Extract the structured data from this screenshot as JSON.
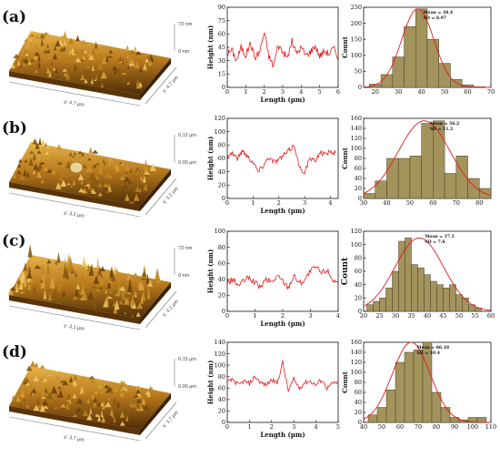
{
  "panels": [
    {
      "label": "(a)",
      "afm": {
        "z_top": "73 nm",
        "z_bottom": "0 nm",
        "axis_y": "y: 4.7 µm",
        "axis_x": "x: 4.7 µm"
      },
      "profile": {
        "xlabel": "Length (µm)",
        "ylabel": "Height (nm)",
        "xlim": [
          0,
          6
        ],
        "ylim": [
          0,
          90
        ],
        "xticks": [
          0,
          1,
          2,
          3,
          4,
          5,
          6
        ],
        "yticks": [
          0,
          15,
          30,
          45,
          60,
          75,
          90
        ]
      },
      "hist": {
        "xlabel": "",
        "ylabel": "Count",
        "ylabel_size": "small",
        "mean_text": "Mean = 38.4",
        "sd_text": "SD = 6.97",
        "xlim": [
          15,
          70
        ],
        "ylim": [
          0,
          250
        ],
        "xticks": [
          20,
          30,
          40,
          50,
          60,
          70
        ],
        "yticks": [
          0,
          50,
          100,
          150,
          200,
          250
        ]
      }
    },
    {
      "label": "(b)",
      "afm": {
        "z_top": "0.12 µm",
        "z_bottom": "0.00 µm",
        "axis_y": "y: 3.2 µm",
        "axis_x": "x: 3.2 µm"
      },
      "profile": {
        "xlabel": "Length (µm)",
        "ylabel": "Height (nm)",
        "xlim": [
          0,
          4.3
        ],
        "ylim": [
          0,
          120
        ],
        "xticks": [
          0,
          1,
          2,
          3,
          4
        ],
        "yticks": [
          0,
          20,
          40,
          60,
          80,
          100,
          120
        ]
      },
      "hist": {
        "xlabel": "",
        "ylabel": "Count",
        "ylabel_size": "small",
        "mean_text": "Mean = 56.2",
        "sd_text": "SD = 11.2",
        "xlim": [
          30,
          85
        ],
        "ylim": [
          0,
          160
        ],
        "xticks": [
          30,
          40,
          50,
          60,
          70,
          80
        ],
        "yticks": [
          0,
          20,
          40,
          60,
          80,
          100,
          120,
          140,
          160
        ]
      }
    },
    {
      "label": "(c)",
      "afm": {
        "z_top": "73 nm",
        "z_bottom": "0 nm",
        "axis_y": "y: 3.1 µm",
        "axis_x": "x: 3.1 µm"
      },
      "profile": {
        "xlabel": "Length (µm)",
        "ylabel": "Height (nm)",
        "xlim": [
          0,
          4
        ],
        "ylim": [
          0,
          100
        ],
        "xticks": [
          0,
          1,
          2,
          3,
          4
        ],
        "yticks": [
          0,
          20,
          40,
          60,
          80,
          100
        ]
      },
      "hist": {
        "xlabel": "",
        "ylabel": "Count",
        "ylabel_size": "big",
        "mean_text": "Mean = 37.5",
        "sd_text": "SD = 7.6",
        "xlim": [
          20,
          60
        ],
        "ylim": [
          0,
          120
        ],
        "xticks": [
          20,
          25,
          30,
          35,
          40,
          45,
          50,
          55,
          60
        ],
        "yticks": [
          0,
          20,
          40,
          60,
          80,
          100,
          120
        ]
      }
    },
    {
      "label": "(d)",
      "afm": {
        "z_top": "0.15 µm",
        "z_bottom": "0.00 µm",
        "axis_y": "y: 3.7 µm",
        "axis_x": "x: 3.7 µm"
      },
      "profile": {
        "xlabel": "Length (µm)",
        "ylabel": "Height (nm)",
        "xlim": [
          0,
          5
        ],
        "ylim": [
          0,
          140
        ],
        "xticks": [
          0,
          1,
          2,
          3,
          4,
          5
        ],
        "yticks": [
          0,
          20,
          40,
          60,
          80,
          100,
          120,
          140
        ]
      },
      "hist": {
        "xlabel": "",
        "ylabel": "Count",
        "ylabel_size": "small",
        "mean_text": "Mean = 66.18",
        "sd_text": "SD = 10.4",
        "xlim": [
          40,
          110
        ],
        "ylim": [
          0,
          160
        ],
        "xticks": [
          40,
          50,
          60,
          70,
          80,
          90,
          100,
          110
        ],
        "yticks": [
          0,
          20,
          40,
          60,
          80,
          100,
          120,
          140,
          160
        ]
      }
    }
  ],
  "colors": {
    "profile_line": "#e41a1c",
    "hist_bar": "#a3935c",
    "hist_edge": "#4a4228",
    "fit_curve": "#e41a1c",
    "afm_dark": "#5a3408",
    "afm_light": "#d8a33a"
  },
  "chart_data": [
    {
      "type": "line",
      "panel": "a",
      "x": [
        0,
        0.25,
        0.5,
        0.75,
        1,
        1.25,
        1.5,
        1.75,
        2,
        2.25,
        2.5,
        2.75,
        3,
        3.25,
        3.5,
        3.75,
        4,
        4.25,
        4.5,
        4.75,
        5,
        5.25,
        5.5,
        5.75,
        6
      ],
      "y": [
        38,
        42,
        30,
        45,
        36,
        50,
        33,
        40,
        62,
        35,
        24,
        48,
        40,
        33,
        52,
        38,
        45,
        36,
        40,
        47,
        35,
        41,
        38,
        44,
        35
      ],
      "xlabel": "Length (µm)",
      "ylabel": "Height (nm)",
      "xlim": [
        0,
        6
      ],
      "ylim": [
        0,
        90
      ]
    },
    {
      "type": "bar",
      "panel": "a",
      "x": [
        20,
        25,
        30,
        35,
        40,
        45,
        50,
        55,
        60,
        65
      ],
      "values": [
        10,
        40,
        95,
        190,
        245,
        150,
        75,
        25,
        8,
        2
      ],
      "fit_mean": 38.4,
      "fit_sd": 6.97,
      "ylabel": "Count",
      "xlim": [
        15,
        70
      ],
      "ylim": [
        0,
        250
      ]
    },
    {
      "type": "line",
      "panel": "b",
      "x": [
        0,
        0.2,
        0.4,
        0.6,
        0.8,
        1,
        1.2,
        1.4,
        1.6,
        1.8,
        2,
        2.2,
        2.4,
        2.6,
        2.8,
        3,
        3.2,
        3.4,
        3.6,
        3.8,
        4,
        4.2
      ],
      "y": [
        65,
        68,
        60,
        72,
        62,
        55,
        40,
        50,
        62,
        55,
        58,
        65,
        72,
        80,
        45,
        40,
        60,
        55,
        70,
        65,
        72,
        68
      ],
      "xlabel": "Length (µm)",
      "ylabel": "Height (nm)",
      "xlim": [
        0,
        4.3
      ],
      "ylim": [
        0,
        120
      ]
    },
    {
      "type": "bar",
      "panel": "b",
      "x": [
        32.5,
        37.5,
        42.5,
        47.5,
        52.5,
        57.5,
        62.5,
        67.5,
        72.5,
        77.5,
        82.5
      ],
      "values": [
        10,
        35,
        80,
        80,
        85,
        150,
        155,
        50,
        85,
        40,
        20
      ],
      "fit_mean": 56.2,
      "fit_sd": 11.2,
      "ylabel": "Count",
      "xlim": [
        30,
        85
      ],
      "ylim": [
        0,
        160
      ]
    },
    {
      "type": "line",
      "panel": "c",
      "x": [
        0,
        0.2,
        0.4,
        0.6,
        0.8,
        1,
        1.2,
        1.4,
        1.6,
        1.8,
        2,
        2.2,
        2.4,
        2.6,
        2.8,
        3,
        3.2,
        3.4,
        3.6,
        3.8,
        4
      ],
      "y": [
        35,
        40,
        32,
        38,
        42,
        35,
        30,
        40,
        36,
        44,
        38,
        30,
        45,
        35,
        40,
        50,
        55,
        48,
        52,
        40,
        35
      ],
      "xlabel": "Length (µm)",
      "ylabel": "Height (nm)",
      "xlim": [
        0,
        4
      ],
      "ylim": [
        0,
        100
      ]
    },
    {
      "type": "bar",
      "panel": "c",
      "x": [
        22,
        24,
        26,
        28,
        30,
        32,
        34,
        36,
        38,
        40,
        42,
        44,
        46,
        48,
        50,
        52,
        54,
        56
      ],
      "values": [
        10,
        15,
        20,
        35,
        60,
        105,
        110,
        70,
        65,
        55,
        45,
        40,
        35,
        40,
        25,
        20,
        10,
        5
      ],
      "fit_mean": 37.5,
      "fit_sd": 7.6,
      "ylabel": "Count",
      "xlim": [
        20,
        60
      ],
      "ylim": [
        0,
        120
      ]
    },
    {
      "type": "line",
      "panel": "d",
      "x": [
        0,
        0.25,
        0.5,
        0.75,
        1,
        1.25,
        1.5,
        1.75,
        2,
        2.25,
        2.5,
        2.75,
        3,
        3.25,
        3.5,
        3.75,
        4,
        4.25,
        4.5,
        4.75,
        5
      ],
      "y": [
        70,
        75,
        65,
        72,
        68,
        80,
        70,
        65,
        75,
        68,
        105,
        55,
        75,
        60,
        70,
        72,
        65,
        75,
        60,
        68,
        70
      ],
      "xlabel": "Length (µm)",
      "ylabel": "Height (nm)",
      "xlim": [
        0,
        5
      ],
      "ylim": [
        0,
        140
      ]
    },
    {
      "type": "bar",
      "panel": "d",
      "x": [
        45,
        50,
        55,
        60,
        65,
        70,
        75,
        80,
        85,
        90,
        95,
        100,
        105
      ],
      "values": [
        15,
        30,
        65,
        120,
        140,
        145,
        160,
        60,
        30,
        10,
        5,
        10,
        10
      ],
      "fit_mean": 66.18,
      "fit_sd": 10.4,
      "ylabel": "Count",
      "xlim": [
        40,
        110
      ],
      "ylim": [
        0,
        160
      ]
    }
  ]
}
